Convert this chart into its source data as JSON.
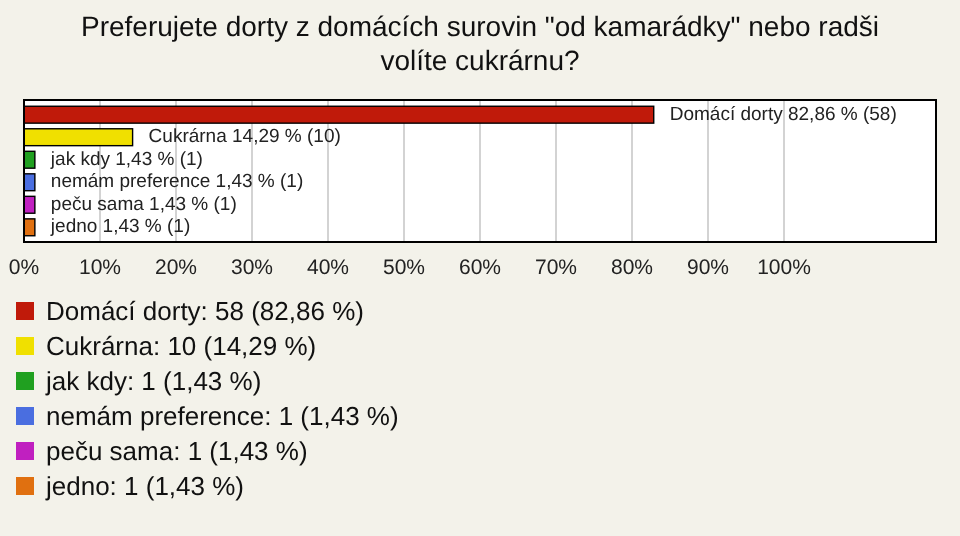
{
  "chart_data": {
    "type": "bar",
    "orientation": "horizontal",
    "title": "Preferujete dorty z domácích surovin \"od kamarádky\" nebo radši volíte cukrárnu?",
    "categories": [
      null,
      null,
      null,
      null,
      null,
      null
    ],
    "xlim": [
      0,
      120
    ],
    "xticks": [
      {
        "value": 0,
        "label": "0%"
      },
      {
        "value": 10,
        "label": "10%"
      },
      {
        "value": 20,
        "label": "20%"
      },
      {
        "value": 30,
        "label": "30%"
      },
      {
        "value": 40,
        "label": "40%"
      },
      {
        "value": 50,
        "label": "50%"
      },
      {
        "value": 60,
        "label": "60%"
      },
      {
        "value": 70,
        "label": "70%"
      },
      {
        "value": 80,
        "label": "80%"
      },
      {
        "value": 90,
        "label": "90%"
      },
      {
        "value": 100,
        "label": "100%"
      }
    ],
    "grid": "x",
    "legend": "bottom",
    "series": [
      {
        "name": "Domácí dorty: 58 (82,86 %)",
        "color": "#c01a0a",
        "values": [
          82.86,
          null,
          null,
          null,
          null,
          null
        ],
        "value_labels": [
          "Domácí dorty 82,86 % (58)",
          null,
          null,
          null,
          null,
          null
        ]
      },
      {
        "name": "Cukrárna: 10 (14,29 %)",
        "color": "#f0e000",
        "values": [
          null,
          14.29,
          null,
          null,
          null,
          null
        ],
        "value_labels": [
          null,
          "Cukrárna 14,29 % (10)",
          null,
          null,
          null,
          null
        ]
      },
      {
        "name": "jak kdy: 1 (1,43 %)",
        "color": "#20a020",
        "values": [
          null,
          null,
          1.43,
          null,
          null,
          null
        ],
        "value_labels": [
          null,
          null,
          "jak kdy 1,43 % (1)",
          null,
          null,
          null
        ]
      },
      {
        "name": "nemám preference: 1 (1,43 %)",
        "color": "#4a6ee0",
        "values": [
          null,
          null,
          null,
          1.43,
          null,
          null
        ],
        "value_labels": [
          null,
          null,
          null,
          "nemám preference 1,43 % (1)",
          null,
          null
        ]
      },
      {
        "name": "peču sama: 1 (1,43 %)",
        "color": "#c020c0",
        "values": [
          null,
          null,
          null,
          null,
          1.43,
          null
        ],
        "value_labels": [
          null,
          null,
          null,
          null,
          "peču sama 1,43 % (1)",
          null
        ]
      },
      {
        "name": "jedno: 1 (1,43 %)",
        "color": "#e07010",
        "values": [
          null,
          null,
          null,
          null,
          null,
          1.43
        ],
        "value_labels": [
          null,
          null,
          null,
          null,
          null,
          "jedno 1,43 % (1)"
        ]
      }
    ]
  }
}
